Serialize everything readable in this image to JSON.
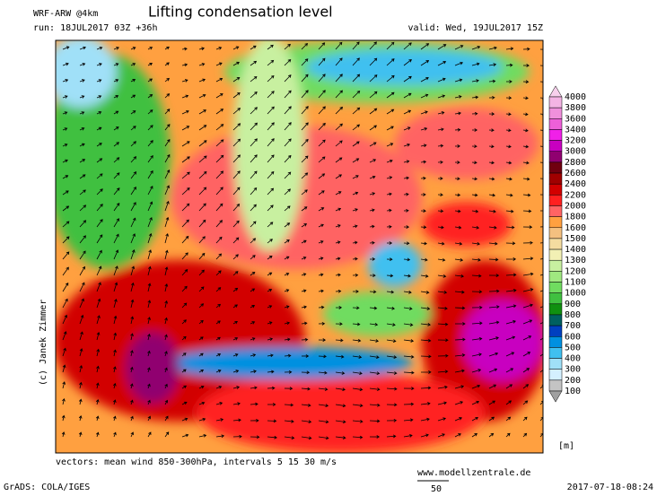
{
  "header": {
    "model": "WRF-ARW @4km",
    "title": "Lifting condensation level",
    "run": "run: 18JUL2017 03Z +36h",
    "valid": "valid: Wed, 19JUL2017 15Z"
  },
  "copyright": "(c) Janek Zimmer",
  "colorbar": {
    "unit": "[m]",
    "levels": [
      4000,
      3800,
      3600,
      3400,
      3200,
      3000,
      2800,
      2600,
      2400,
      2200,
      2000,
      1800,
      1600,
      1500,
      1400,
      1300,
      1200,
      1100,
      1000,
      900,
      800,
      700,
      600,
      500,
      400,
      300,
      200,
      100
    ],
    "colors": [
      "#f8d0ec",
      "#f4b4e4",
      "#f090dc",
      "#ee60d8",
      "#f020e8",
      "#c800c0",
      "#900070",
      "#700010",
      "#a00000",
      "#d20000",
      "#ff2020",
      "#ff6464",
      "#ffa040",
      "#f4c080",
      "#f4dca0",
      "#f2f0b4",
      "#c8f0a0",
      "#a0e880",
      "#70dc60",
      "#40c040",
      "#109010",
      "#006060",
      "#0040c0",
      "#0090e0",
      "#40c0f0",
      "#a0e0f8",
      "#d4f0ff",
      "#c4c4c4",
      "#a0a0a0"
    ]
  },
  "footer": {
    "vectors": "vectors: mean wind 850-300hPa, intervals 5 15 30 m/s",
    "website": "www.modellzentrale.de",
    "scale": "50",
    "software": "GrADS: COLA/IGES",
    "timestamp": "2017-07-18-08:24"
  }
}
